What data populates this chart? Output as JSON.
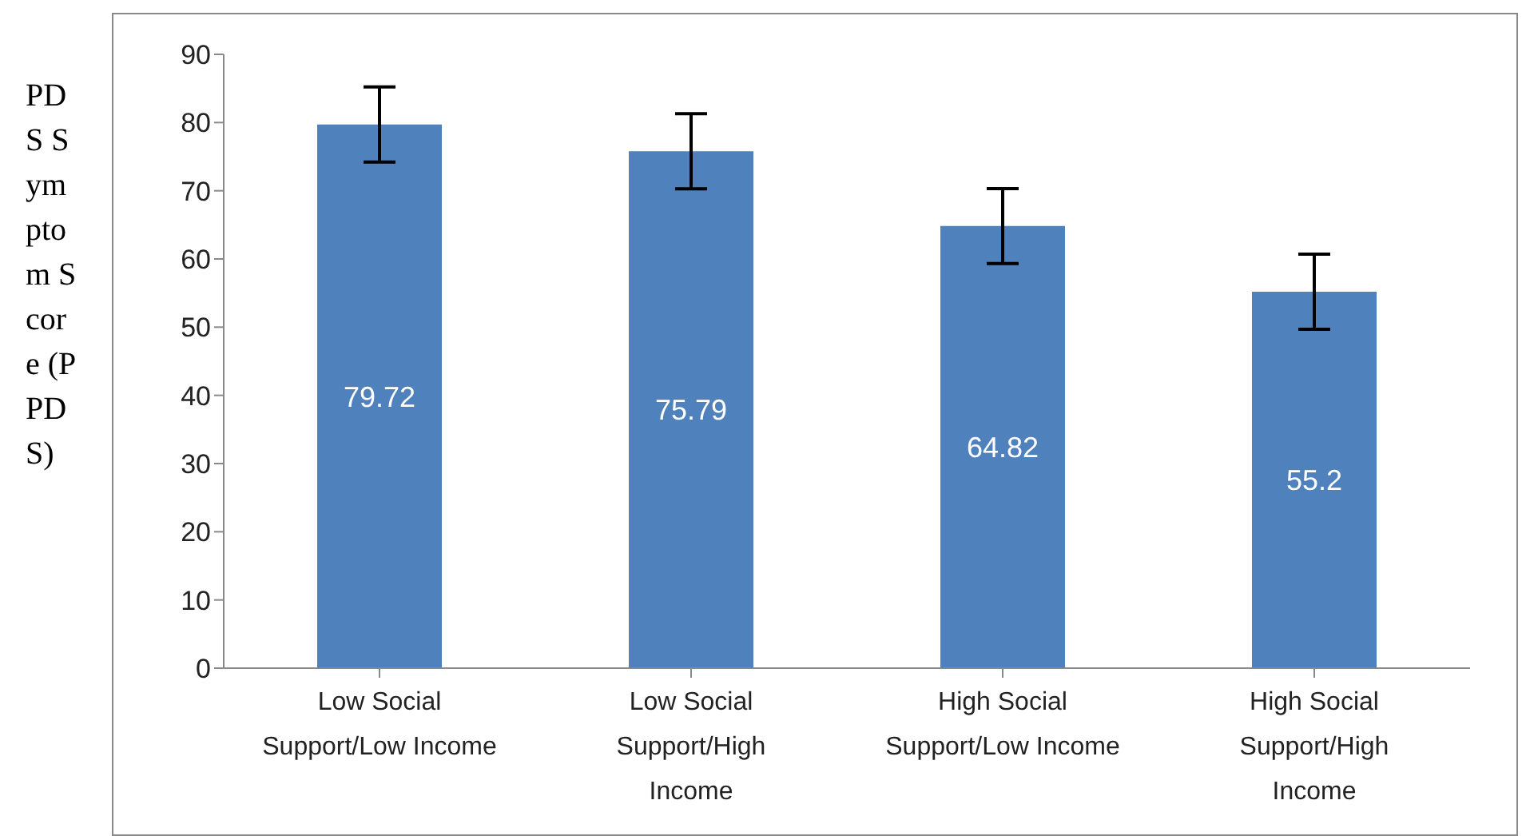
{
  "chart_data": {
    "type": "bar",
    "ylabel": "PDS Symptom Score (PPDS)",
    "categories": [
      "Low Social Support/Low Income",
      "Low Social Support/High Income",
      "High Social Support/Low Income",
      "High Social Support/High Income"
    ],
    "values": [
      79.72,
      75.79,
      64.82,
      55.2
    ],
    "errors": [
      5.5,
      5.5,
      5.5,
      5.5
    ],
    "color": "#4f81bd",
    "data_labels": true,
    "ylim": [
      0,
      90
    ],
    "yticks": [
      0,
      10,
      20,
      30,
      40,
      50,
      60,
      70,
      80,
      90
    ],
    "grid": false
  }
}
